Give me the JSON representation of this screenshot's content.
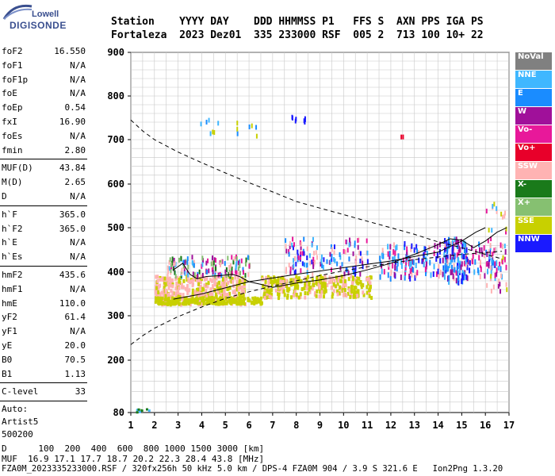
{
  "logo": {
    "top": "Lowell",
    "bottom": "DIGISONDE"
  },
  "header": {
    "labels": "Station    YYYY DAY    DDD HHMMSS P1   FFS S  AXN PPS IGA PS",
    "values": "Fortaleza  2023 Dez01  335 233000 RSF  005 2  713 100 10+ 22"
  },
  "params": {
    "group1": [
      {
        "k": "foF2",
        "v": "16.550"
      },
      {
        "k": "foF1",
        "v": "N/A"
      },
      {
        "k": "foF1p",
        "v": "N/A"
      },
      {
        "k": "foE",
        "v": "N/A"
      },
      {
        "k": "foEp",
        "v": "0.54"
      },
      {
        "k": "fxI",
        "v": "16.90"
      },
      {
        "k": "foEs",
        "v": "N/A"
      },
      {
        "k": "fmin",
        "v": "2.80"
      }
    ],
    "group2": [
      {
        "k": "MUF(D)",
        "v": "43.84"
      },
      {
        "k": "M(D)",
        "v": "2.65"
      },
      {
        "k": "D",
        "v": "N/A"
      }
    ],
    "group3": [
      {
        "k": "h`F",
        "v": "365.0"
      },
      {
        "k": "h`F2",
        "v": "365.0"
      },
      {
        "k": "h`E",
        "v": "N/A"
      },
      {
        "k": "h`Es",
        "v": "N/A"
      }
    ],
    "group4": [
      {
        "k": "hmF2",
        "v": "435.6"
      },
      {
        "k": "hmF1",
        "v": "N/A"
      },
      {
        "k": "hmE",
        "v": "110.0"
      },
      {
        "k": "yF2",
        "v": "61.4"
      },
      {
        "k": "yF1",
        "v": "N/A"
      },
      {
        "k": "yE",
        "v": "20.0"
      },
      {
        "k": "B0",
        "v": "70.5"
      },
      {
        "k": "B1",
        "v": "1.13"
      }
    ],
    "group5": [
      {
        "k": "C-level",
        "v": "33"
      }
    ],
    "auto": [
      "Auto:",
      "Artist5",
      "500200"
    ]
  },
  "legend": [
    {
      "label": "NoVal",
      "color": "#808080"
    },
    {
      "label": "NNE",
      "color": "#3fb7ff"
    },
    {
      "label": "E",
      "color": "#1a8cff"
    },
    {
      "label": "W",
      "color": "#a0109a"
    },
    {
      "label": "Vo-",
      "color": "#e8189a"
    },
    {
      "label": "Vo+",
      "color": "#e8002a"
    },
    {
      "label": "SSW",
      "color": "#ffb3b3"
    },
    {
      "label": "X-",
      "color": "#1a7a1a"
    },
    {
      "label": "X+",
      "color": "#86c071"
    },
    {
      "label": "SSE",
      "color": "#c8d000"
    },
    {
      "label": "NNW",
      "color": "#1a1aff"
    }
  ],
  "chart_data": {
    "type": "scatter",
    "x_ticks": [
      "1",
      "2",
      "3",
      "4",
      "5",
      "6",
      "7",
      "8",
      "9",
      "10",
      "11",
      "12",
      "13",
      "14",
      "15",
      "16",
      "17"
    ],
    "y_ticks": [
      "900",
      "800",
      "700",
      "600",
      "500",
      "400",
      "300",
      "200",
      "80"
    ],
    "xlim": [
      1,
      17
    ],
    "y_tick_values": [
      900,
      800,
      700,
      600,
      500,
      400,
      300,
      200,
      80
    ],
    "series_profile": [
      [
        2.8,
        405
      ],
      [
        3.2,
        420
      ],
      [
        3.5,
        395
      ],
      [
        3.8,
        385
      ],
      [
        4.2,
        390
      ],
      [
        4.8,
        392
      ],
      [
        5.3,
        395
      ],
      [
        5.6,
        390
      ],
      [
        6.0,
        378
      ],
      [
        6.5,
        372
      ],
      [
        7.0,
        365
      ],
      [
        7.5,
        370
      ],
      [
        8.0,
        375
      ],
      [
        9.0,
        382
      ],
      [
        10.0,
        392
      ],
      [
        11.0,
        405
      ],
      [
        12.0,
        420
      ],
      [
        13.0,
        440
      ],
      [
        14.0,
        462
      ],
      [
        14.5,
        475
      ],
      [
        15.0,
        472
      ],
      [
        15.5,
        455
      ],
      [
        16.0,
        470
      ],
      [
        16.5,
        490
      ],
      [
        16.9,
        500
      ]
    ],
    "series_model_upper": [
      [
        1.0,
        745
      ],
      [
        1.5,
        720
      ],
      [
        2.0,
        700
      ],
      [
        3.0,
        672
      ],
      [
        4.0,
        648
      ],
      [
        5.0,
        625
      ],
      [
        6.0,
        603
      ],
      [
        7.0,
        582
      ],
      [
        8.0,
        560
      ],
      [
        9.0,
        545
      ],
      [
        10.0,
        530
      ],
      [
        11.0,
        515
      ],
      [
        12.0,
        500
      ],
      [
        13.0,
        485
      ],
      [
        14.0,
        468
      ],
      [
        15.0,
        455
      ],
      [
        16.0,
        440
      ],
      [
        16.7,
        430
      ]
    ],
    "series_model_lower": [
      [
        1.0,
        235
      ],
      [
        1.5,
        255
      ],
      [
        2.0,
        272
      ],
      [
        3.0,
        298
      ],
      [
        4.0,
        320
      ],
      [
        5.0,
        340
      ],
      [
        6.0,
        355
      ],
      [
        7.0,
        368
      ],
      [
        8.0,
        380
      ],
      [
        9.0,
        392
      ],
      [
        10.0,
        403
      ],
      [
        11.0,
        412
      ],
      [
        12.0,
        420
      ],
      [
        13.0,
        428
      ],
      [
        14.0,
        434
      ],
      [
        15.0,
        440
      ],
      [
        16.0,
        444
      ],
      [
        16.7,
        447
      ]
    ],
    "series_trace": [
      [
        2.8,
        338
      ],
      [
        4.0,
        350
      ],
      [
        6.0,
        378
      ],
      [
        8.0,
        395
      ],
      [
        10.0,
        410
      ],
      [
        12.0,
        425
      ],
      [
        14.0,
        445
      ],
      [
        15.0,
        470
      ],
      [
        15.6,
        490
      ],
      [
        16.0,
        500
      ]
    ]
  },
  "footer": {
    "line1": "D      100  200  400  600  800 1000 1500 3000 [km]",
    "line2": "MUF  16.9 17.1 17.7 18.7 20.2 22.3 28.4 43.8 [MHz]",
    "line3": "FZA0M_2023335233000.RSF / 320fx256h 50 kHz 5.0 km / DPS-4 FZA0M 904 / 3.9 S 321.6 E   Ion2Png 1.3.20"
  }
}
